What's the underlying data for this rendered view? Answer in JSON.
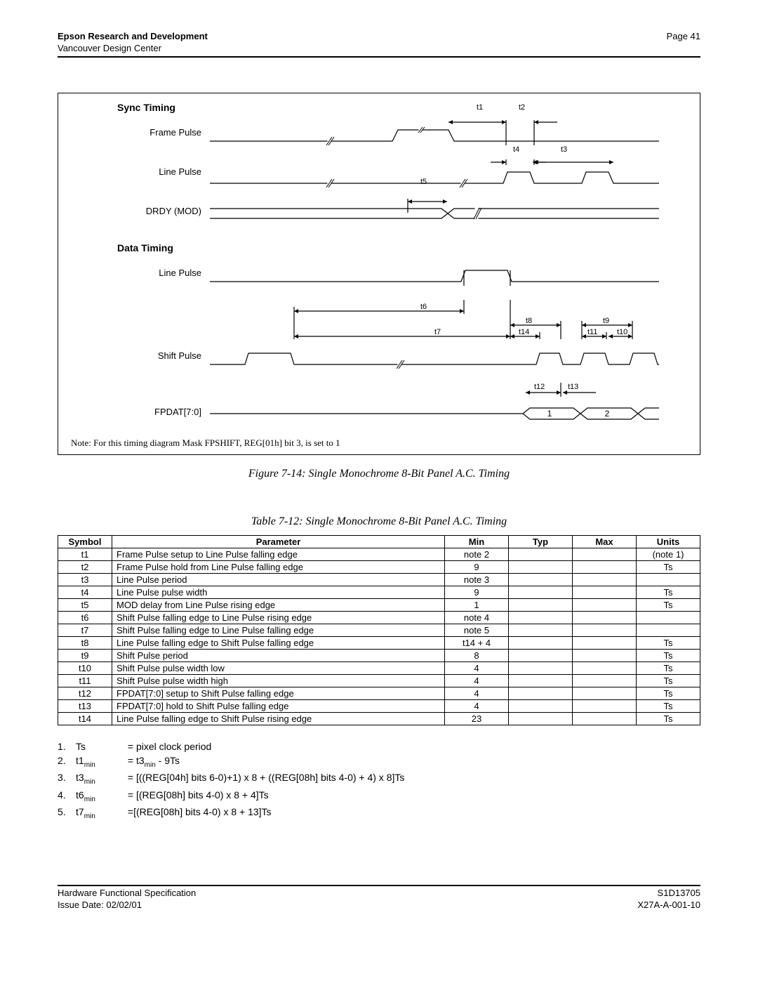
{
  "header": {
    "org": "Epson Research and Development",
    "sub": "Vancouver Design Center",
    "page": "Page 41"
  },
  "diagram": {
    "syncHead": "Sync Timing",
    "dataHead": "Data Timing",
    "rows": {
      "framePulse": "Frame Pulse",
      "linePulse": "Line Pulse",
      "drdy": "DRDY (MOD)",
      "shiftPulse": "Shift Pulse",
      "fpdat": "FPDAT[7:0]"
    },
    "dims": {
      "t1": "t1",
      "t2": "t2",
      "t3": "t3",
      "t4": "t4",
      "t5": "t5",
      "t6": "t6",
      "t7": "t7",
      "t8": "t8",
      "t9": "t9",
      "t10": "t10",
      "t11": "t11",
      "t12": "t12",
      "t13": "t13",
      "t14": "t14"
    },
    "busVals": [
      "1",
      "2"
    ],
    "note": "Note: For this timing diagram Mask FPSHIFT, REG[01h] bit 3, is set to 1"
  },
  "figCaption": "Figure 7-14: Single Monochrome 8-Bit Panel A.C. Timing",
  "tabCaption": "Table 7-12: Single Monochrome 8-Bit Panel A.C. Timing",
  "table": {
    "headers": [
      "Symbol",
      "Parameter",
      "Min",
      "Typ",
      "Max",
      "Units"
    ],
    "rows": [
      [
        "t1",
        "Frame Pulse setup to Line Pulse falling edge",
        "note 2",
        "",
        "",
        "(note 1)"
      ],
      [
        "t2",
        "Frame Pulse hold from Line Pulse falling edge",
        "9",
        "",
        "",
        "Ts"
      ],
      [
        "t3",
        "Line Pulse period",
        "note 3",
        "",
        "",
        ""
      ],
      [
        "t4",
        "Line Pulse pulse width",
        "9",
        "",
        "",
        "Ts"
      ],
      [
        "t5",
        "MOD delay from Line Pulse rising edge",
        "1",
        "",
        "",
        "Ts"
      ],
      [
        "t6",
        "Shift Pulse falling edge to Line Pulse rising edge",
        "note 4",
        "",
        "",
        ""
      ],
      [
        "t7",
        "Shift Pulse falling edge to Line Pulse falling edge",
        "note 5",
        "",
        "",
        ""
      ],
      [
        "t8",
        "Line Pulse falling edge to Shift Pulse falling edge",
        "t14 + 4",
        "",
        "",
        "Ts"
      ],
      [
        "t9",
        "Shift Pulse period",
        "8",
        "",
        "",
        "Ts"
      ],
      [
        "t10",
        "Shift Pulse pulse width low",
        "4",
        "",
        "",
        "Ts"
      ],
      [
        "t11",
        "Shift Pulse pulse width high",
        "4",
        "",
        "",
        "Ts"
      ],
      [
        "t12",
        "FPDAT[7:0] setup to Shift Pulse falling edge",
        "4",
        "",
        "",
        "Ts"
      ],
      [
        "t13",
        "FPDAT[7:0] hold to Shift Pulse falling edge",
        "4",
        "",
        "",
        "Ts"
      ],
      [
        "t14",
        "Line Pulse falling edge to Shift Pulse rising edge",
        "23",
        "",
        "",
        "Ts"
      ]
    ]
  },
  "notes": [
    {
      "n": "1.",
      "v": "Ts",
      "body": "= pixel clock period"
    },
    {
      "n": "2.",
      "v": "t1<sub>min</sub>",
      "body": "= t3<sub>min</sub> - 9Ts"
    },
    {
      "n": "3.",
      "v": "t3<sub>min</sub>",
      "body": "= [((REG[04h] bits 6-0)+1) x 8 + ((REG[08h] bits 4-0) + 4) x 8]Ts"
    },
    {
      "n": "4.",
      "v": "t6<sub>min</sub>",
      "body": "= [(REG[08h] bits 4-0) x 8 + 4]Ts"
    },
    {
      "n": "5.",
      "v": "t7<sub>min</sub>",
      "body": "=[(REG[08h] bits 4-0) x 8 + 13]Ts"
    }
  ],
  "footer": {
    "l1": "Hardware Functional Specification",
    "l2": "Issue Date: 02/02/01",
    "r1": "S1D13705",
    "r2": "X27A-A-001-10"
  }
}
